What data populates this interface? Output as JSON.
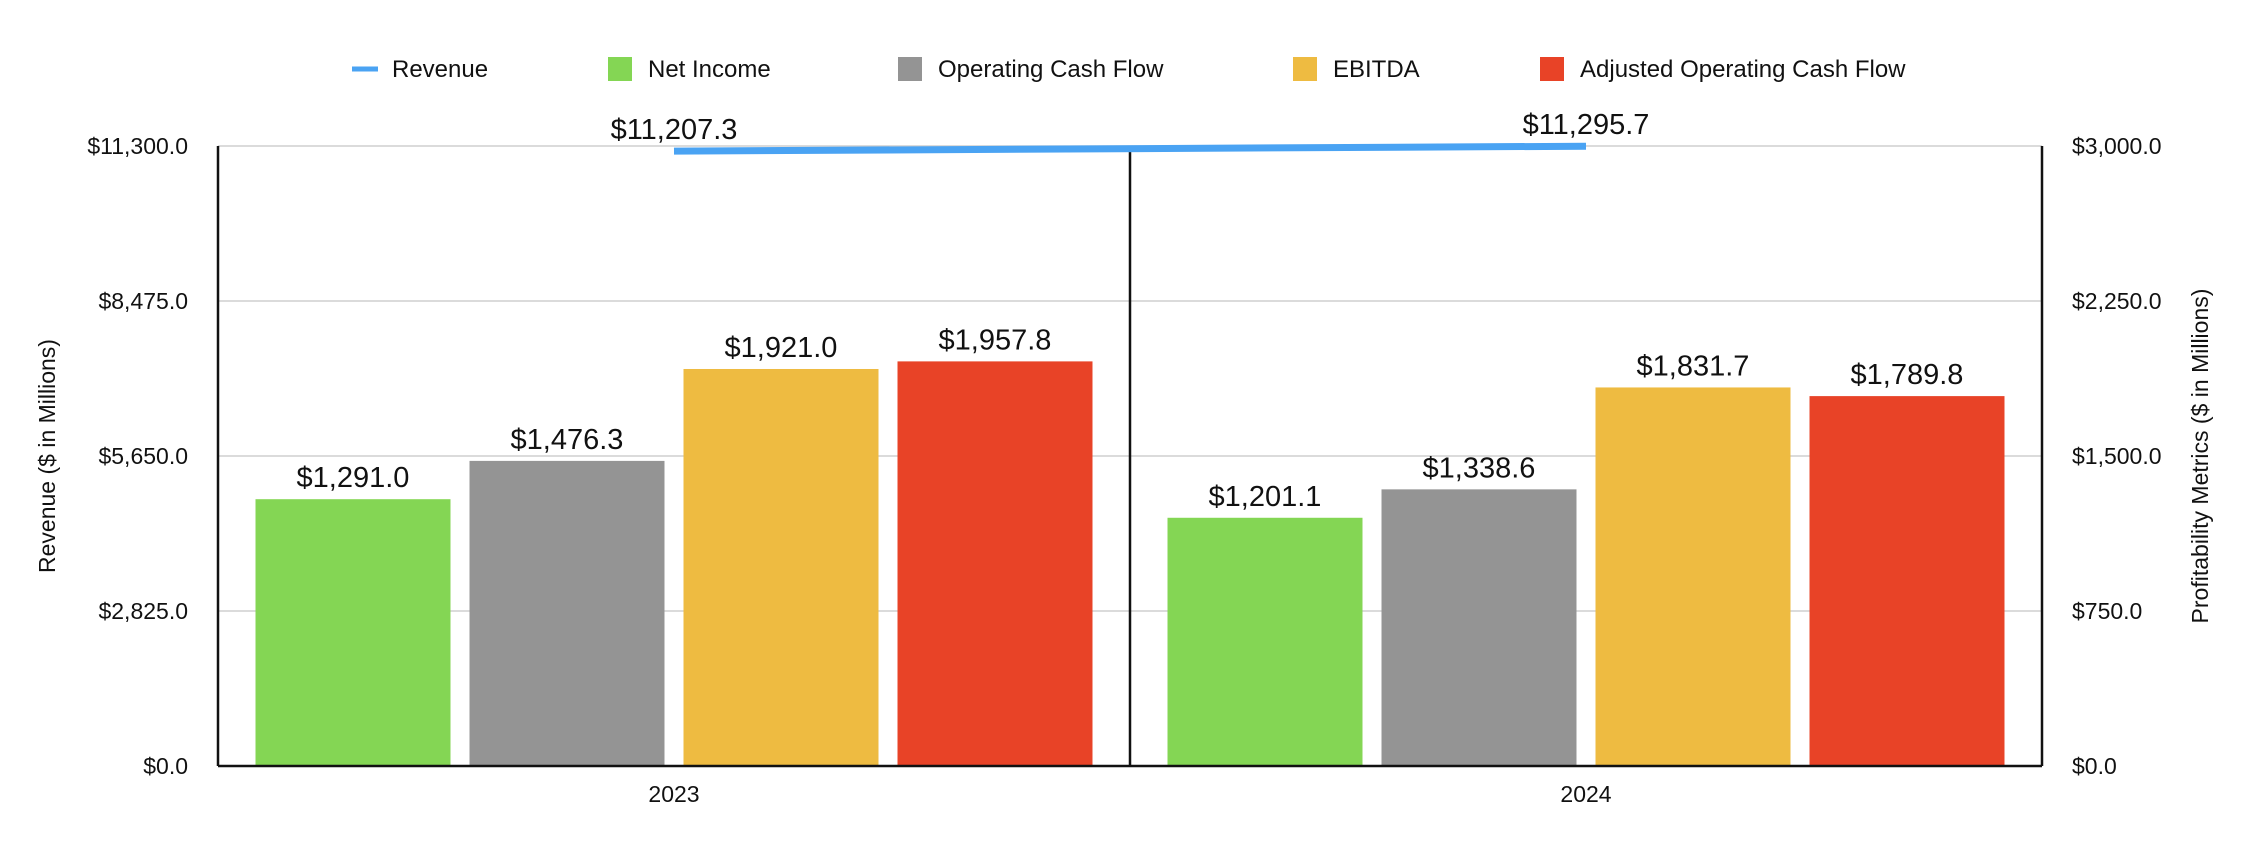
{
  "chart_data": {
    "type": "bar",
    "categories": [
      "2023",
      "2024"
    ],
    "series": [
      {
        "name": "Net Income",
        "axis": "right",
        "color": "#84d654",
        "values": [
          1291.0,
          1201.1
        ],
        "labels": [
          "$1,291.0",
          "$1,201.1"
        ]
      },
      {
        "name": "Operating Cash Flow",
        "axis": "right",
        "color": "#949494",
        "values": [
          1476.3,
          1338.6
        ],
        "labels": [
          "$1,476.3",
          "$1,338.6"
        ]
      },
      {
        "name": "EBITDA",
        "axis": "right",
        "color": "#eebb41",
        "values": [
          1921.0,
          1831.7
        ],
        "labels": [
          "$1,921.0",
          "$1,831.7"
        ]
      },
      {
        "name": "Adjusted Operating Cash Flow",
        "axis": "right",
        "color": "#e84327",
        "values": [
          1957.8,
          1789.8
        ],
        "labels": [
          "$1,957.8",
          "$1,789.8"
        ]
      }
    ],
    "line_series": {
      "name": "Revenue",
      "axis": "left",
      "color": "#4aa3f3",
      "values": [
        11207.3,
        11295.7
      ],
      "labels": [
        "$11,207.3",
        "$11,295.7"
      ]
    },
    "left_axis": {
      "label": "Revenue ($ in Millions)",
      "ylim": [
        0,
        11300
      ],
      "ticks": [
        0,
        2825,
        5650,
        8475,
        11300
      ],
      "tick_labels": [
        "$0.0",
        "$2,825.0",
        "$5,650.0",
        "$8,475.0",
        "$11,300.0"
      ]
    },
    "right_axis": {
      "label": "Profitability Metrics ($ in Millions)",
      "ylim": [
        0,
        3000
      ],
      "ticks": [
        0,
        750,
        1500,
        2250,
        3000
      ],
      "tick_labels": [
        "$0.0",
        "$750.0",
        "$1,500.0",
        "$2,250.0",
        "$3,000.0"
      ]
    },
    "legend": {
      "position": "top",
      "items": [
        "Revenue",
        "Net Income",
        "Operating Cash Flow",
        "EBITDA",
        "Adjusted Operating Cash Flow"
      ]
    },
    "grid": true
  }
}
